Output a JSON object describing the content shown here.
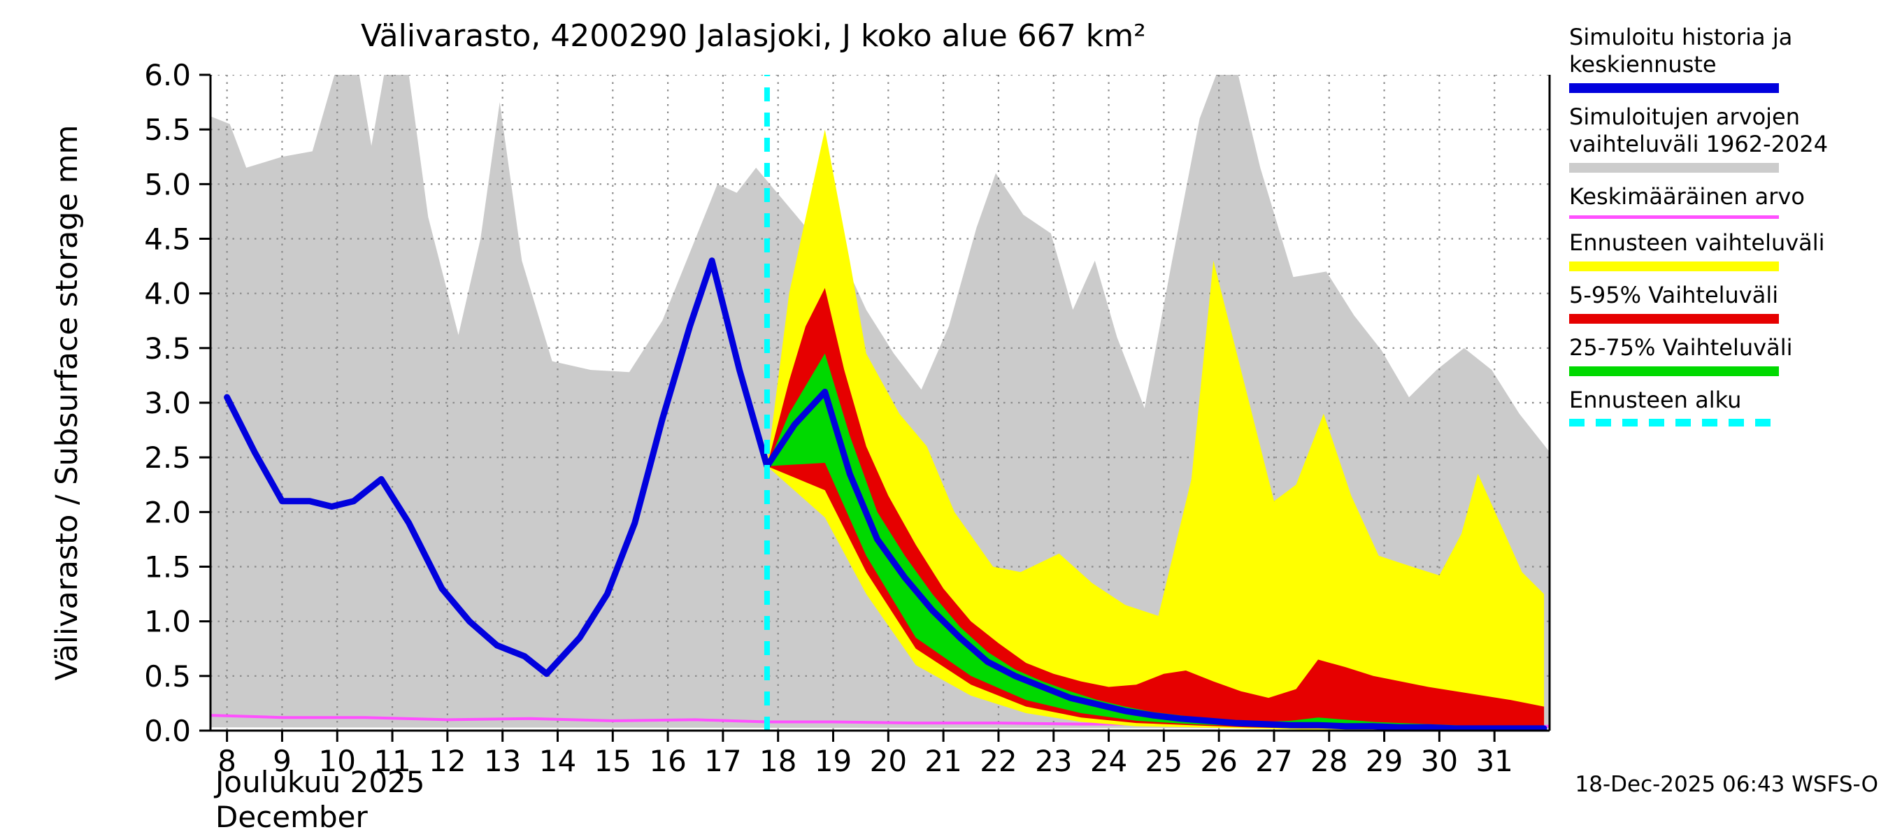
{
  "header": {
    "title": "Välivarasto, 4200290 Jalasjoki, J koko alue 667 km²"
  },
  "footer": {
    "month_label": "Joulukuu 2025",
    "month_label_en": "December",
    "timestamp": "18-Dec-2025 06:43 WSFS-O"
  },
  "legend": {
    "items": [
      {
        "label": "Simuloitu historia ja keskiennuste",
        "color": "#0101dd",
        "style": "thick-line"
      },
      {
        "label": "Simuloitujen arvojen vaihteluväli 1962-2024",
        "color": "#cccccc",
        "style": "thick-line"
      },
      {
        "label": "Keskimääräinen arvo",
        "color": "#ff50ff",
        "style": "thin-line"
      },
      {
        "label": "Ennusteen vaihteluväli",
        "color": "#ffff00",
        "style": "thick-line"
      },
      {
        "label": "5-95% Vaihteluväli",
        "color": "#e60000",
        "style": "thick-line"
      },
      {
        "label": "25-75% Vaihteluväli",
        "color": "#00d900",
        "style": "thick-line"
      },
      {
        "label": "Ennusteen alku",
        "color": "#00ffff",
        "style": "dashed-line"
      }
    ]
  },
  "chart_data": {
    "type": "area",
    "title": "Välivarasto, 4200290 Jalasjoki, J koko alue 667 km²",
    "ylabel": "Välivarasto / Subsurface storage  mm",
    "xlabel": "Joulukuu 2025 / December",
    "xlim": [
      7.7,
      32.0
    ],
    "ylim": [
      0.0,
      6.0
    ],
    "x_ticks": [
      8,
      9,
      10,
      11,
      12,
      13,
      14,
      15,
      16,
      17,
      18,
      19,
      20,
      21,
      22,
      23,
      24,
      25,
      26,
      27,
      28,
      29,
      30,
      31
    ],
    "y_ticks": [
      0.0,
      0.5,
      1.0,
      1.5,
      2.0,
      2.5,
      3.0,
      3.5,
      4.0,
      4.5,
      5.0,
      5.5,
      6.0
    ],
    "grid": true,
    "forecast_start_x": 17.8,
    "colors": {
      "history_line": "#0101dd",
      "history_range": "#cbcbcb",
      "mean_line": "#ff50ff",
      "forecast_range": "#ffff00",
      "range_5_95": "#e60000",
      "range_25_75": "#00d900",
      "forecast_start": "#00ffff",
      "grid": "#8a8a8a",
      "axis": "#000000"
    },
    "series": {
      "history_range_upper": [
        [
          7.7,
          5.62
        ],
        [
          8.05,
          5.55
        ],
        [
          8.35,
          5.15
        ],
        [
          9.0,
          5.25
        ],
        [
          9.55,
          5.3
        ],
        [
          9.95,
          6.0
        ],
        [
          10.4,
          6.0
        ],
        [
          10.62,
          5.35
        ],
        [
          10.85,
          6.0
        ],
        [
          11.3,
          6.0
        ],
        [
          11.65,
          4.7
        ],
        [
          12.2,
          3.62
        ],
        [
          12.6,
          4.5
        ],
        [
          12.95,
          5.75
        ],
        [
          13.35,
          4.3
        ],
        [
          13.9,
          3.38
        ],
        [
          14.6,
          3.3
        ],
        [
          15.3,
          3.28
        ],
        [
          15.9,
          3.75
        ],
        [
          16.5,
          4.5
        ],
        [
          16.9,
          5.0
        ],
        [
          17.25,
          4.92
        ],
        [
          17.6,
          5.15
        ],
        [
          18.1,
          4.85
        ],
        [
          18.6,
          4.55
        ],
        [
          19.1,
          4.4
        ],
        [
          19.6,
          3.85
        ],
        [
          20.1,
          3.45
        ],
        [
          20.6,
          3.12
        ],
        [
          21.1,
          3.7
        ],
        [
          21.6,
          4.6
        ],
        [
          21.95,
          5.1
        ],
        [
          22.45,
          4.72
        ],
        [
          22.95,
          4.55
        ],
        [
          23.35,
          3.85
        ],
        [
          23.75,
          4.3
        ],
        [
          24.15,
          3.6
        ],
        [
          24.65,
          2.95
        ],
        [
          25.15,
          4.3
        ],
        [
          25.65,
          5.6
        ],
        [
          25.95,
          6.0
        ],
        [
          26.35,
          6.0
        ],
        [
          26.75,
          5.15
        ],
        [
          27.35,
          4.15
        ],
        [
          27.95,
          4.2
        ],
        [
          28.45,
          3.8
        ],
        [
          28.95,
          3.48
        ],
        [
          29.45,
          3.05
        ],
        [
          29.95,
          3.3
        ],
        [
          30.45,
          3.5
        ],
        [
          30.95,
          3.3
        ],
        [
          31.45,
          2.9
        ],
        [
          32.0,
          2.55
        ]
      ],
      "history_range_lower": [
        [
          7.7,
          0.03
        ],
        [
          32.0,
          0.02
        ]
      ],
      "forecast_range_upper": [
        [
          17.8,
          2.42
        ],
        [
          18.2,
          4.0
        ],
        [
          18.85,
          5.5
        ],
        [
          19.3,
          4.3
        ],
        [
          19.6,
          3.45
        ],
        [
          20.2,
          2.9
        ],
        [
          20.7,
          2.6
        ],
        [
          21.2,
          2.0
        ],
        [
          21.9,
          1.5
        ],
        [
          22.4,
          1.45
        ],
        [
          23.1,
          1.62
        ],
        [
          23.7,
          1.35
        ],
        [
          24.3,
          1.15
        ],
        [
          24.9,
          1.05
        ],
        [
          25.5,
          2.3
        ],
        [
          25.9,
          4.3
        ],
        [
          26.5,
          3.1
        ],
        [
          27.0,
          2.1
        ],
        [
          27.4,
          2.25
        ],
        [
          27.9,
          2.9
        ],
        [
          28.4,
          2.15
        ],
        [
          28.9,
          1.6
        ],
        [
          29.5,
          1.5
        ],
        [
          30.0,
          1.42
        ],
        [
          30.4,
          1.8
        ],
        [
          30.7,
          2.35
        ],
        [
          31.1,
          1.9
        ],
        [
          31.5,
          1.45
        ],
        [
          31.9,
          1.25
        ]
      ],
      "forecast_range_lower": [
        [
          17.8,
          2.42
        ],
        [
          18.85,
          1.95
        ],
        [
          19.6,
          1.25
        ],
        [
          20.5,
          0.6
        ],
        [
          21.5,
          0.32
        ],
        [
          22.5,
          0.16
        ],
        [
          23.5,
          0.08
        ],
        [
          24.5,
          0.04
        ],
        [
          25.5,
          0.03
        ],
        [
          26.5,
          0.02
        ],
        [
          27.5,
          0.01
        ],
        [
          28.5,
          0.01
        ],
        [
          29.5,
          0.01
        ],
        [
          30.5,
          0.0
        ],
        [
          31.9,
          0.0
        ]
      ],
      "range_5_95_upper": [
        [
          17.8,
          2.42
        ],
        [
          18.2,
          3.2
        ],
        [
          18.5,
          3.7
        ],
        [
          18.85,
          4.05
        ],
        [
          19.2,
          3.3
        ],
        [
          19.6,
          2.6
        ],
        [
          20.0,
          2.15
        ],
        [
          20.5,
          1.7
        ],
        [
          21.0,
          1.3
        ],
        [
          21.5,
          1.0
        ],
        [
          22.0,
          0.8
        ],
        [
          22.5,
          0.62
        ],
        [
          23.0,
          0.52
        ],
        [
          23.5,
          0.45
        ],
        [
          24.0,
          0.4
        ],
        [
          24.5,
          0.42
        ],
        [
          25.0,
          0.52
        ],
        [
          25.4,
          0.55
        ],
        [
          25.9,
          0.45
        ],
        [
          26.4,
          0.36
        ],
        [
          26.9,
          0.3
        ],
        [
          27.4,
          0.38
        ],
        [
          27.8,
          0.65
        ],
        [
          28.3,
          0.58
        ],
        [
          28.8,
          0.5
        ],
        [
          29.3,
          0.45
        ],
        [
          29.8,
          0.4
        ],
        [
          30.3,
          0.36
        ],
        [
          30.8,
          0.32
        ],
        [
          31.3,
          0.28
        ],
        [
          31.9,
          0.22
        ]
      ],
      "range_5_95_lower": [
        [
          17.8,
          2.42
        ],
        [
          18.85,
          2.2
        ],
        [
          19.6,
          1.45
        ],
        [
          20.5,
          0.75
        ],
        [
          21.5,
          0.42
        ],
        [
          22.5,
          0.22
        ],
        [
          23.5,
          0.12
        ],
        [
          24.5,
          0.07
        ],
        [
          25.5,
          0.05
        ],
        [
          26.5,
          0.03
        ],
        [
          27.5,
          0.02
        ],
        [
          28.5,
          0.02
        ],
        [
          29.5,
          0.01
        ],
        [
          30.5,
          0.01
        ],
        [
          31.9,
          0.01
        ]
      ],
      "range_25_75_upper": [
        [
          17.8,
          2.42
        ],
        [
          18.2,
          2.9
        ],
        [
          18.85,
          3.45
        ],
        [
          19.3,
          2.7
        ],
        [
          19.8,
          2.0
        ],
        [
          20.3,
          1.6
        ],
        [
          20.8,
          1.25
        ],
        [
          21.3,
          0.95
        ],
        [
          21.8,
          0.72
        ],
        [
          22.3,
          0.56
        ],
        [
          22.8,
          0.45
        ],
        [
          23.3,
          0.36
        ],
        [
          23.8,
          0.28
        ],
        [
          24.3,
          0.22
        ],
        [
          24.8,
          0.17
        ],
        [
          25.3,
          0.14
        ],
        [
          25.8,
          0.11
        ],
        [
          26.3,
          0.09
        ],
        [
          26.8,
          0.08
        ],
        [
          27.3,
          0.09
        ],
        [
          27.8,
          0.12
        ],
        [
          28.3,
          0.1
        ],
        [
          28.8,
          0.08
        ],
        [
          29.3,
          0.07
        ],
        [
          29.8,
          0.06
        ],
        [
          30.3,
          0.05
        ],
        [
          30.8,
          0.04
        ],
        [
          31.3,
          0.04
        ],
        [
          31.9,
          0.03
        ]
      ],
      "range_25_75_lower": [
        [
          17.8,
          2.42
        ],
        [
          18.85,
          2.45
        ],
        [
          19.6,
          1.6
        ],
        [
          20.5,
          0.85
        ],
        [
          21.5,
          0.5
        ],
        [
          22.5,
          0.28
        ],
        [
          23.5,
          0.16
        ],
        [
          24.5,
          0.09
        ],
        [
          25.5,
          0.06
        ],
        [
          26.5,
          0.04
        ],
        [
          27.5,
          0.03
        ],
        [
          28.5,
          0.02
        ],
        [
          29.5,
          0.02
        ],
        [
          30.5,
          0.01
        ],
        [
          31.9,
          0.01
        ]
      ],
      "history_line": [
        [
          8.0,
          3.05
        ],
        [
          8.5,
          2.55
        ],
        [
          9.0,
          2.1
        ],
        [
          9.5,
          2.1
        ],
        [
          9.9,
          2.05
        ],
        [
          10.3,
          2.1
        ],
        [
          10.8,
          2.3
        ],
        [
          11.3,
          1.9
        ],
        [
          11.9,
          1.3
        ],
        [
          12.4,
          1.0
        ],
        [
          12.9,
          0.78
        ],
        [
          13.4,
          0.68
        ],
        [
          13.8,
          0.52
        ],
        [
          14.4,
          0.85
        ],
        [
          14.9,
          1.25
        ],
        [
          15.4,
          1.9
        ],
        [
          15.9,
          2.85
        ],
        [
          16.4,
          3.7
        ],
        [
          16.8,
          4.3
        ],
        [
          17.3,
          3.3
        ],
        [
          17.8,
          2.42
        ],
        [
          18.3,
          2.8
        ],
        [
          18.85,
          3.1
        ],
        [
          19.3,
          2.35
        ],
        [
          19.8,
          1.75
        ],
        [
          20.3,
          1.4
        ],
        [
          20.8,
          1.1
        ],
        [
          21.3,
          0.85
        ],
        [
          21.8,
          0.63
        ],
        [
          22.3,
          0.5
        ],
        [
          22.8,
          0.4
        ],
        [
          23.3,
          0.3
        ],
        [
          23.8,
          0.24
        ],
        [
          24.3,
          0.18
        ],
        [
          24.8,
          0.14
        ],
        [
          25.3,
          0.11
        ],
        [
          25.8,
          0.09
        ],
        [
          26.3,
          0.07
        ],
        [
          26.8,
          0.06
        ],
        [
          27.3,
          0.05
        ],
        [
          27.8,
          0.05
        ],
        [
          28.3,
          0.04
        ],
        [
          28.8,
          0.04
        ],
        [
          29.3,
          0.03
        ],
        [
          29.8,
          0.03
        ],
        [
          30.3,
          0.02
        ],
        [
          30.8,
          0.02
        ],
        [
          31.3,
          0.02
        ],
        [
          31.9,
          0.02
        ]
      ],
      "mean_line": [
        [
          7.7,
          0.14
        ],
        [
          9.0,
          0.12
        ],
        [
          10.5,
          0.12
        ],
        [
          12.0,
          0.1
        ],
        [
          13.5,
          0.11
        ],
        [
          15.0,
          0.09
        ],
        [
          16.5,
          0.1
        ],
        [
          17.8,
          0.08
        ],
        [
          19.0,
          0.08
        ],
        [
          20.5,
          0.07
        ],
        [
          22.0,
          0.07
        ],
        [
          23.5,
          0.06
        ],
        [
          25.0,
          0.06
        ],
        [
          26.5,
          0.05
        ],
        [
          28.0,
          0.05
        ],
        [
          29.5,
          0.05
        ],
        [
          31.0,
          0.04
        ],
        [
          32.0,
          0.04
        ]
      ]
    }
  }
}
